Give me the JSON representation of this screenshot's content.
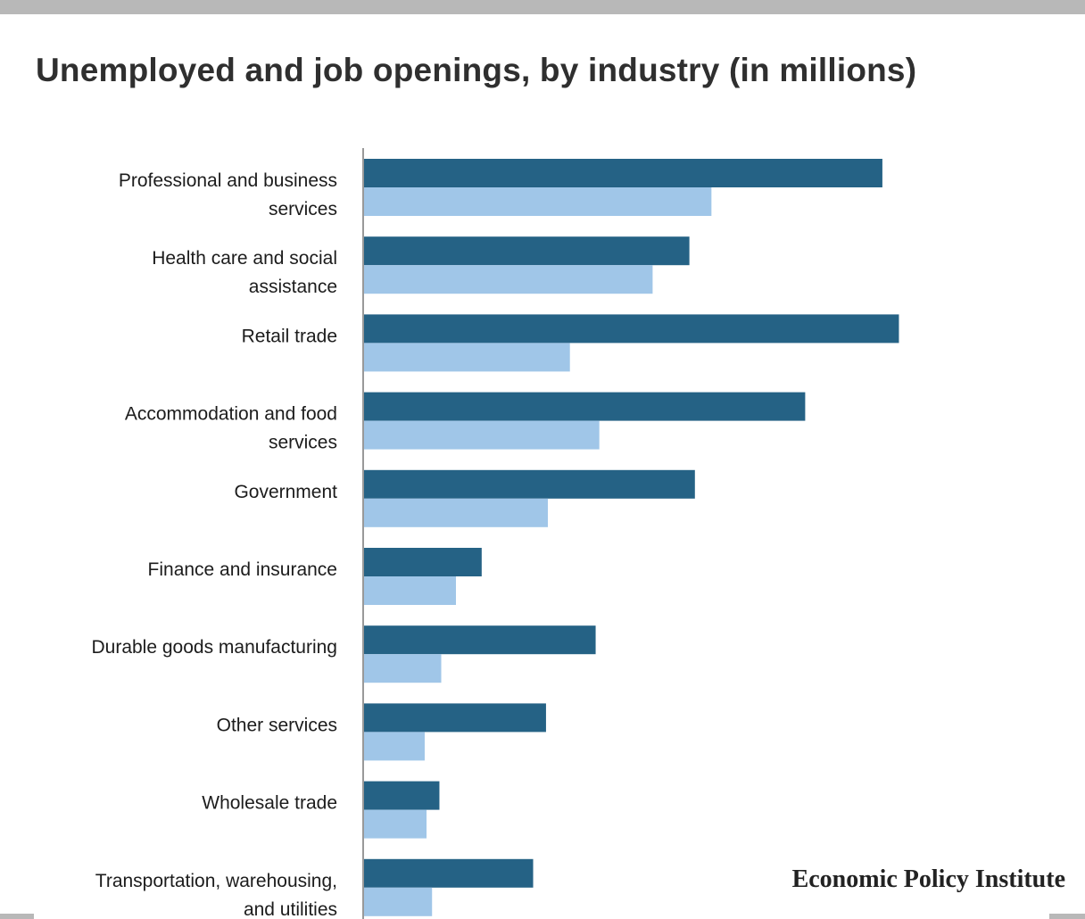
{
  "page": {
    "title": "Unemployed and job openings, by industry (in millions)",
    "brand": "Economic Policy Institute"
  },
  "colors": {
    "unemployed": "#256285",
    "job_openings": "#a0c6e8",
    "axis": "#999999",
    "frame": "#b8b8b8"
  },
  "chart_data": {
    "type": "bar",
    "orientation": "horizontal",
    "title": "Unemployed and job openings, by industry (in millions)",
    "xlabel": "",
    "ylabel": "",
    "xlim": [
      0,
      3.5
    ],
    "grid": false,
    "categories": [
      "Professional and business services",
      "Health care and social assistance",
      "Retail trade",
      "Accommodation and food services",
      "Government",
      "Finance and insurance",
      "Durable goods manufacturing",
      "Other services",
      "Wholesale trade",
      "Transportation, warehousing, and utilities"
    ],
    "category_lines": [
      [
        "Professional and business",
        "services"
      ],
      [
        "Health care and social",
        "assistance"
      ],
      [
        "Retail trade"
      ],
      [
        "Accommodation and food",
        "services"
      ],
      [
        "Government"
      ],
      [
        "Finance and insurance"
      ],
      [
        "Durable goods manufacturing"
      ],
      [
        "Other services"
      ],
      [
        "Wholesale trade"
      ],
      [
        "Transportation, warehousing,",
        "and utilities"
      ]
    ],
    "series": [
      {
        "key": "unemployed",
        "values": [
          2.82,
          1.77,
          2.91,
          2.4,
          1.8,
          0.64,
          1.26,
          0.99,
          0.41,
          0.92
        ]
      },
      {
        "key": "job_openings",
        "values": [
          1.89,
          1.57,
          1.12,
          1.28,
          1.0,
          0.5,
          0.42,
          0.33,
          0.34,
          0.37
        ]
      }
    ]
  }
}
